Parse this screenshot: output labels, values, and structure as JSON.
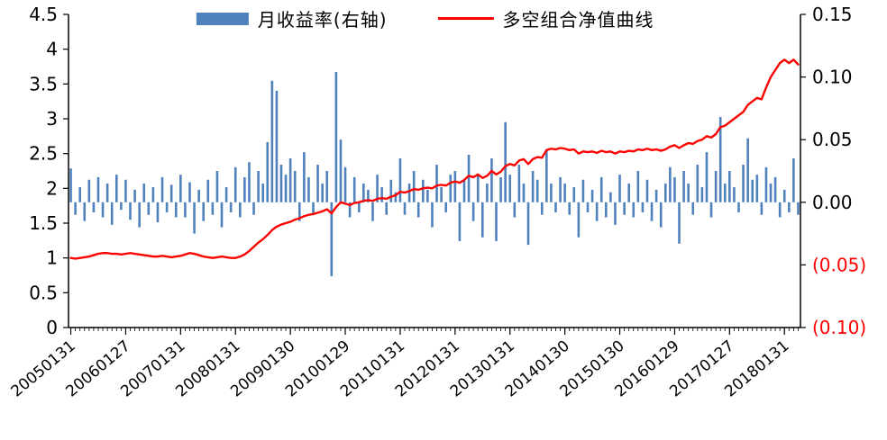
{
  "chart_data": {
    "type": "bar+line",
    "title": "",
    "colors": {
      "bar": "#4F81BD",
      "line": "#FF0000",
      "axis": "#000000",
      "negative_label": "#FF0000"
    },
    "legend": [
      {
        "label": "月收益率(右轴)",
        "type": "bar",
        "color": "#4F81BD"
      },
      {
        "label": "多空组合净值曲线",
        "type": "line",
        "color": "#FF0000"
      }
    ],
    "left_axis": {
      "min": 0,
      "max": 4.5,
      "step": 0.5,
      "tick_labels": [
        "4.5",
        "4",
        "3.5",
        "3",
        "2.5",
        "2",
        "1.5",
        "1",
        "0.5",
        "0"
      ]
    },
    "right_axis": {
      "min": -0.1,
      "max": 0.15,
      "step": 0.05,
      "ticks": [
        {
          "value": 0.15,
          "label": "0.15",
          "color": "#000000"
        },
        {
          "value": 0.1,
          "label": "0.10",
          "color": "#000000"
        },
        {
          "value": 0.05,
          "label": "0.05",
          "color": "#000000"
        },
        {
          "value": 0.0,
          "label": "0.00",
          "color": "#000000"
        },
        {
          "value": -0.05,
          "label": "(0.05)",
          "color": "#FF0000"
        },
        {
          "value": -0.1,
          "label": "(0.10)",
          "color": "#FF0000"
        }
      ]
    },
    "x_tick_labels": [
      "20050131",
      "20060127",
      "20070131",
      "20080131",
      "20090130",
      "20100129",
      "20110131",
      "20120131",
      "20130131",
      "20140130",
      "20150130",
      "20160129",
      "20170127",
      "20180131"
    ],
    "x_tick_every": 12,
    "bar_series": {
      "name": "月收益率(右轴)",
      "axis": "right",
      "values": [
        0.027,
        -0.01,
        0.012,
        -0.015,
        0.018,
        -0.008,
        0.02,
        -0.012,
        0.015,
        -0.018,
        0.022,
        -0.006,
        0.018,
        -0.014,
        0.01,
        -0.02,
        0.015,
        -0.01,
        0.012,
        -0.016,
        0.02,
        -0.008,
        0.014,
        -0.012,
        0.022,
        -0.012,
        0.016,
        -0.025,
        0.01,
        -0.015,
        0.018,
        -0.01,
        0.025,
        -0.02,
        0.012,
        -0.008,
        0.028,
        -0.012,
        0.02,
        0.032,
        -0.01,
        0.025,
        0.015,
        0.048,
        0.097,
        0.089,
        0.03,
        0.022,
        0.035,
        0.025,
        -0.015,
        0.04,
        0.02,
        -0.01,
        0.03,
        0.015,
        0.025,
        -0.059,
        0.104,
        0.05,
        0.028,
        -0.012,
        0.02,
        -0.008,
        0.015,
        0.01,
        -0.015,
        0.022,
        0.012,
        -0.01,
        0.018,
        0.008,
        0.035,
        -0.01,
        0.015,
        0.025,
        -0.012,
        0.018,
        0.01,
        -0.02,
        0.03,
        0.012,
        -0.008,
        0.022,
        0.025,
        -0.031,
        0.018,
        0.038,
        -0.015,
        0.022,
        -0.028,
        0.015,
        0.035,
        -0.031,
        0.02,
        0.064,
        0.022,
        -0.012,
        0.03,
        0.015,
        -0.034,
        0.025,
        0.018,
        -0.01,
        0.042,
        0.015,
        -0.008,
        0.02,
        0.015,
        -0.01,
        0.012,
        -0.028,
        0.018,
        -0.008,
        0.01,
        -0.015,
        0.02,
        -0.012,
        0.008,
        -0.018,
        0.022,
        -0.01,
        0.015,
        -0.012,
        0.025,
        -0.008,
        0.018,
        -0.015,
        0.01,
        -0.02,
        0.015,
        0.028,
        0.02,
        -0.033,
        0.025,
        0.015,
        -0.01,
        0.03,
        0.012,
        0.04,
        -0.012,
        0.025,
        0.068,
        0.015,
        0.025,
        0.012,
        -0.008,
        0.03,
        0.051,
        0.018,
        0.022,
        -0.01,
        0.028,
        0.015,
        0.02,
        -0.012,
        0.01,
        -0.008,
        0.035,
        -0.01
      ]
    },
    "line_series": {
      "name": "多空组合净值曲线",
      "axis": "left",
      "values": [
        1.0,
        0.99,
        1.0,
        1.01,
        1.02,
        1.04,
        1.06,
        1.07,
        1.07,
        1.06,
        1.06,
        1.05,
        1.06,
        1.07,
        1.06,
        1.05,
        1.04,
        1.03,
        1.02,
        1.02,
        1.03,
        1.02,
        1.01,
        1.02,
        1.03,
        1.05,
        1.07,
        1.06,
        1.04,
        1.02,
        1.01,
        1.0,
        1.01,
        1.02,
        1.01,
        1.0,
        1.0,
        1.02,
        1.05,
        1.1,
        1.16,
        1.22,
        1.27,
        1.33,
        1.4,
        1.45,
        1.48,
        1.5,
        1.52,
        1.55,
        1.57,
        1.6,
        1.62,
        1.63,
        1.65,
        1.67,
        1.7,
        1.64,
        1.73,
        1.8,
        1.78,
        1.76,
        1.79,
        1.8,
        1.82,
        1.83,
        1.82,
        1.85,
        1.86,
        1.85,
        1.88,
        1.9,
        1.95,
        1.94,
        1.96,
        1.99,
        1.98,
        2.0,
        2.01,
        2.0,
        2.04,
        2.05,
        2.04,
        2.08,
        2.1,
        2.08,
        2.12,
        2.18,
        2.16,
        2.2,
        2.15,
        2.18,
        2.25,
        2.2,
        2.24,
        2.32,
        2.35,
        2.33,
        2.4,
        2.42,
        2.35,
        2.42,
        2.45,
        2.44,
        2.55,
        2.57,
        2.56,
        2.58,
        2.57,
        2.55,
        2.56,
        2.5,
        2.53,
        2.52,
        2.53,
        2.51,
        2.54,
        2.52,
        2.53,
        2.5,
        2.53,
        2.52,
        2.54,
        2.53,
        2.56,
        2.55,
        2.57,
        2.55,
        2.56,
        2.54,
        2.56,
        2.6,
        2.62,
        2.58,
        2.62,
        2.65,
        2.64,
        2.68,
        2.7,
        2.75,
        2.73,
        2.78,
        2.88,
        2.9,
        2.95,
        3.0,
        3.05,
        3.1,
        3.2,
        3.25,
        3.3,
        3.28,
        3.45,
        3.6,
        3.7,
        3.8,
        3.85,
        3.8,
        3.85,
        3.78
      ]
    }
  }
}
